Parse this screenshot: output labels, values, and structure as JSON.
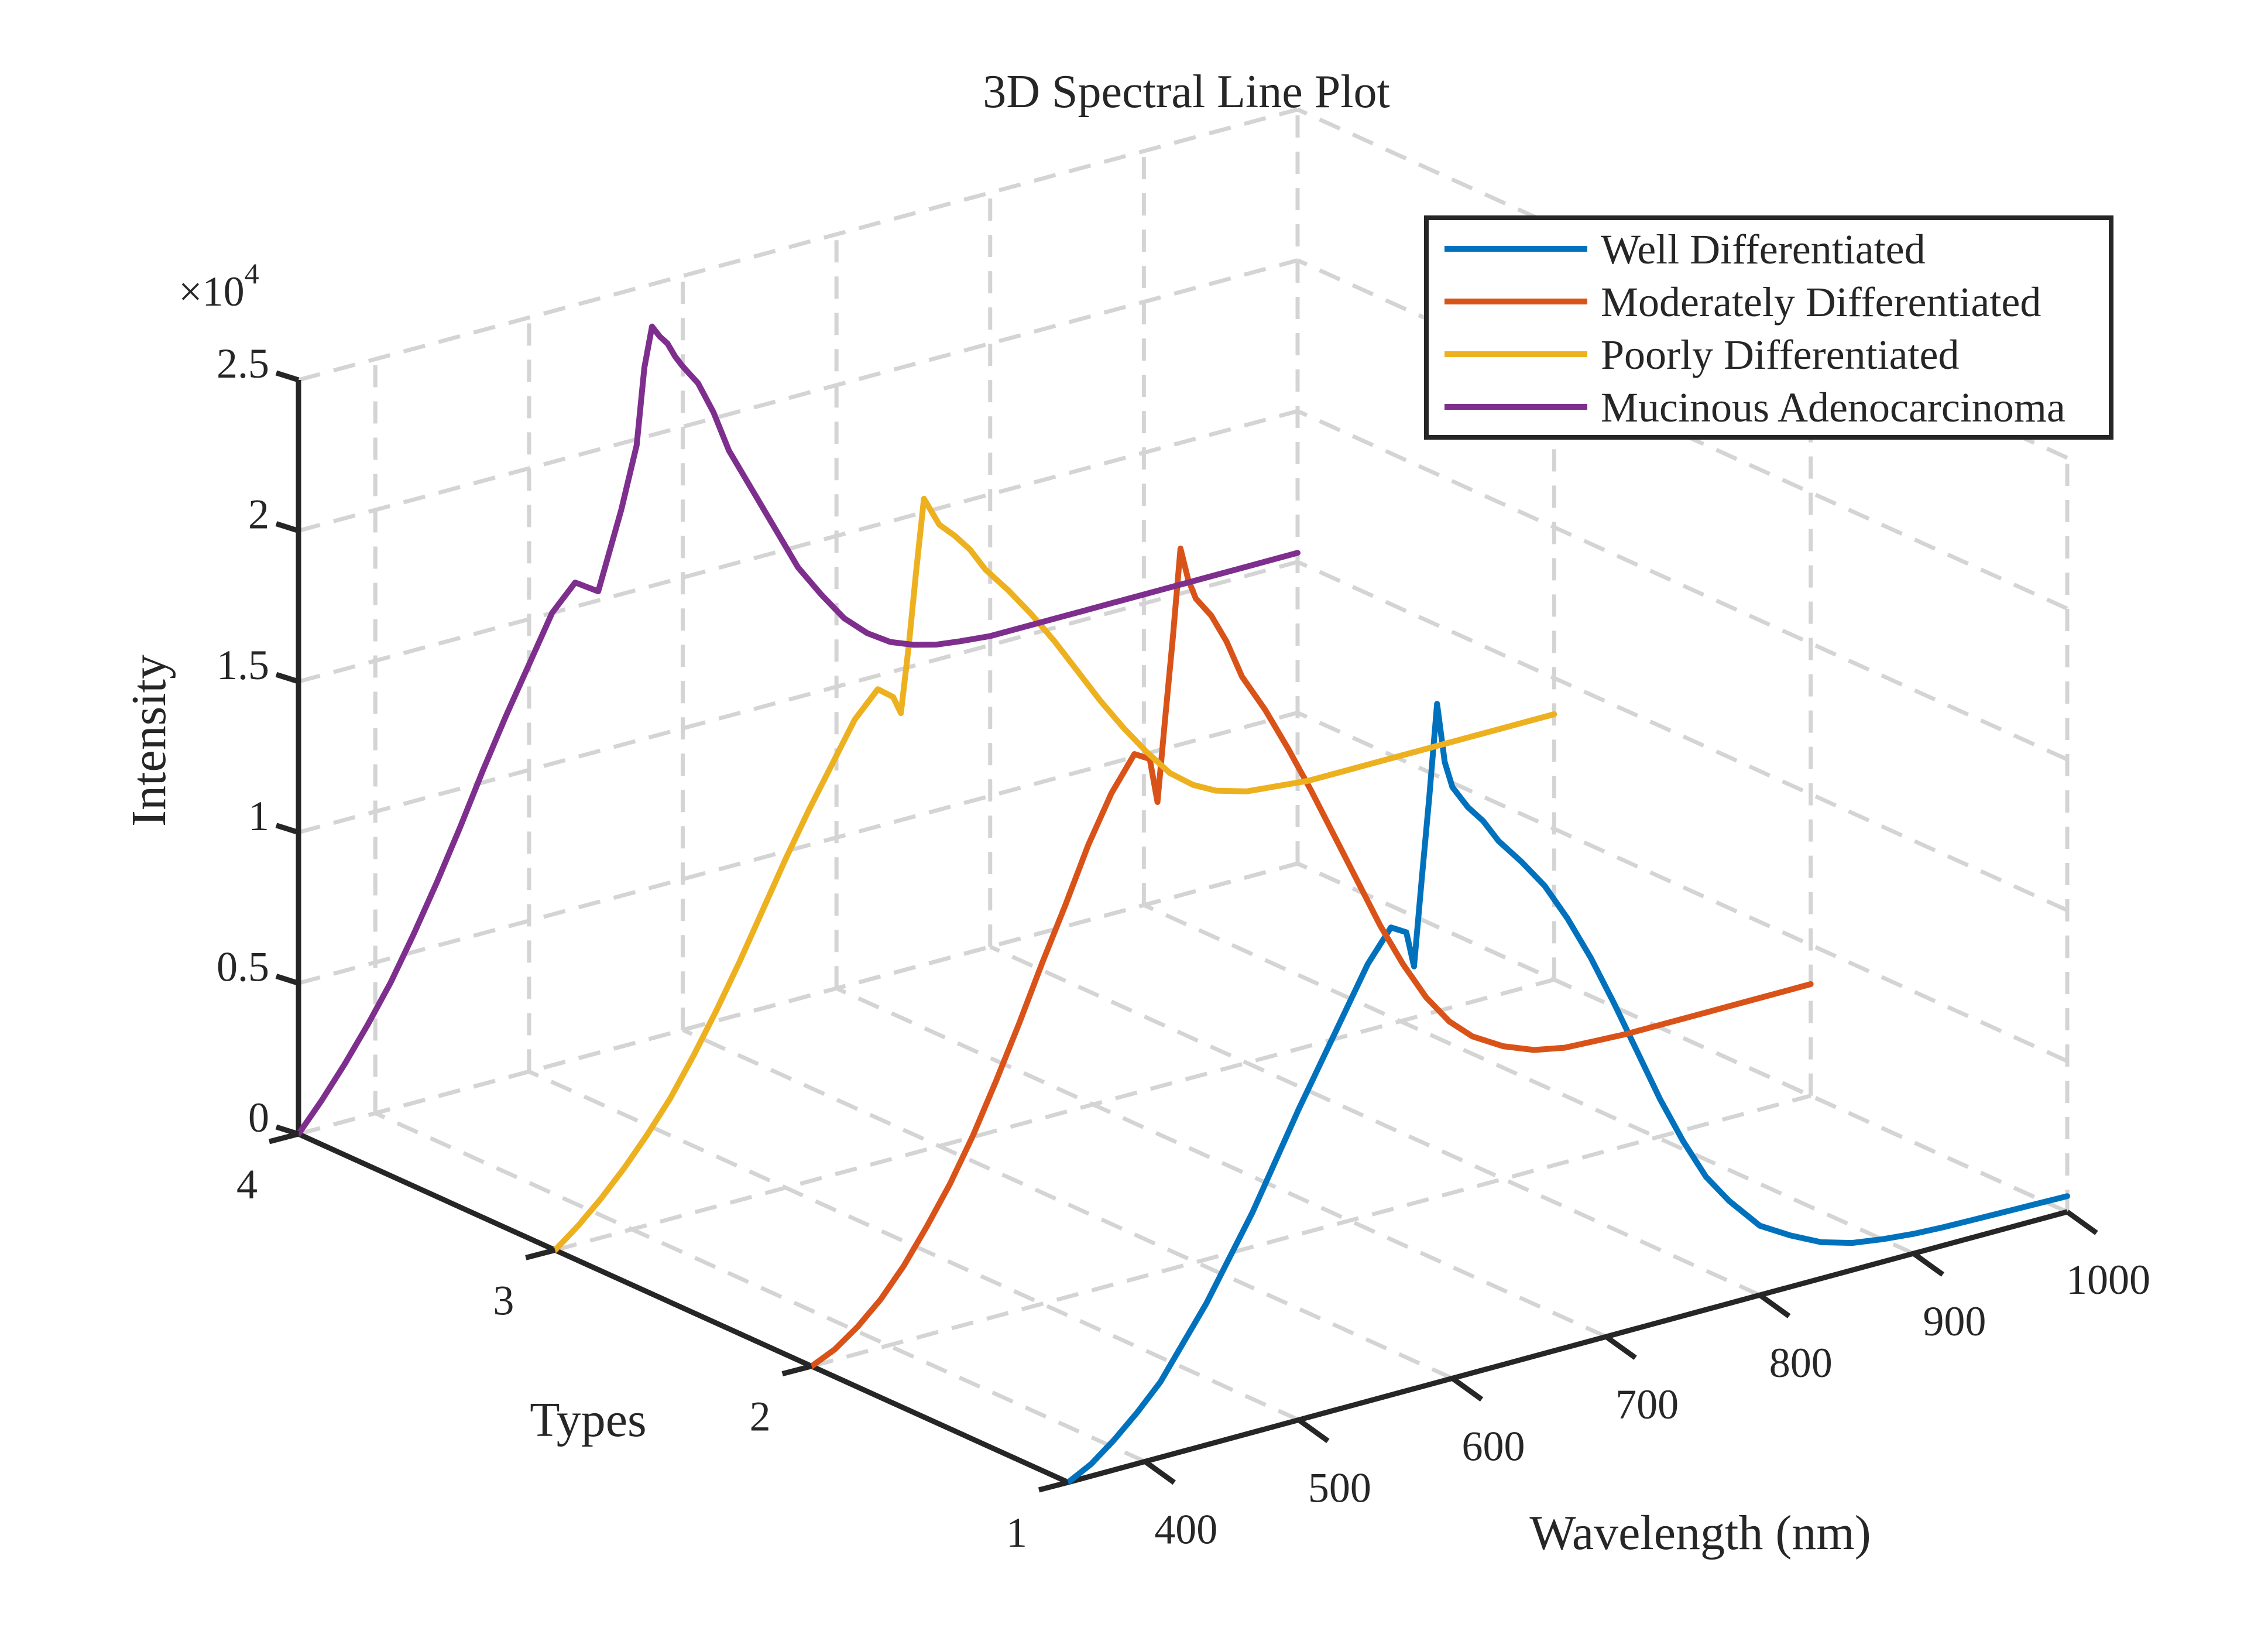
{
  "chart_data": {
    "type": "line",
    "title": "3D Spectral Line Plot",
    "xlabel": "Wavelength (nm)",
    "ylabel": "Types",
    "zlabel": "Intensity",
    "z_exponent_base": "×10",
    "z_exponent_power": "4",
    "xlim": [
      350,
      1000
    ],
    "ylim": [
      1,
      4
    ],
    "zlim": [
      0,
      25000
    ],
    "x_ticks": [
      400,
      500,
      600,
      700,
      800,
      900,
      1000
    ],
    "x_tick_labels": [
      "400",
      "500",
      "600",
      "700",
      "800",
      "900",
      "1000"
    ],
    "y_ticks": [
      1,
      2,
      3,
      4
    ],
    "y_tick_labels": [
      "1",
      "2",
      "3",
      "4"
    ],
    "z_ticks": [
      0,
      5000,
      10000,
      15000,
      20000,
      25000
    ],
    "z_tick_labels": [
      "0",
      "0.5",
      "1",
      "1.5",
      "2",
      "2.5"
    ],
    "grid": true,
    "legend_position": "top-right",
    "x": [
      350,
      365,
      380,
      395,
      410,
      425,
      440,
      455,
      470,
      485,
      500,
      515,
      530,
      545,
      560,
      570,
      575,
      580,
      585,
      590,
      595,
      600,
      610,
      620,
      630,
      645,
      660,
      675,
      690,
      705,
      720,
      735,
      750,
      765,
      780,
      800,
      820,
      840,
      860,
      880,
      900,
      920,
      940,
      960,
      980,
      1000
    ],
    "series": [
      {
        "name": "Well Differentiated",
        "color": "#0072BD",
        "y": 1,
        "values": [
          0,
          400,
          1000,
          1700,
          2500,
          3600,
          4700,
          6000,
          7300,
          8800,
          10300,
          11700,
          13100,
          14500,
          15500,
          15200,
          14000,
          16800,
          19500,
          22500,
          20500,
          19600,
          18800,
          18200,
          17400,
          16500,
          15500,
          14200,
          12700,
          11000,
          9200,
          7400,
          5800,
          4400,
          3400,
          2300,
          1700,
          1200,
          900,
          750,
          650,
          600,
          580,
          560,
          540,
          520
        ]
      },
      {
        "name": "Moderately Differentiated",
        "color": "#D95319",
        "y": 2,
        "values": [
          0,
          350,
          900,
          1600,
          2500,
          3600,
          4800,
          6200,
          7800,
          9500,
          11300,
          13000,
          14800,
          16300,
          17400,
          17100,
          15600,
          18300,
          20900,
          23800,
          22700,
          22000,
          21300,
          20300,
          19000,
          17700,
          16200,
          14600,
          12900,
          11200,
          9500,
          8000,
          6700,
          5700,
          5000,
          4400,
          4000,
          3800,
          3750,
          3700,
          3700,
          3700,
          3700,
          3700,
          3700,
          3700
        ]
      },
      {
        "name": "Poorly Differentiated",
        "color": "#EDB120",
        "y": 3,
        "values": [
          0,
          600,
          1300,
          2100,
          3000,
          4000,
          5200,
          6500,
          7900,
          9400,
          10900,
          12300,
          13600,
          14900,
          15700,
          15300,
          14700,
          16800,
          19300,
          21600,
          21100,
          20600,
          20100,
          19500,
          18700,
          17800,
          16800,
          15700,
          14500,
          13300,
          12200,
          11200,
          10300,
          9700,
          9300,
          9000,
          8900,
          8800,
          8800,
          8800,
          8800,
          8800,
          8800,
          8800,
          8800,
          8800
        ]
      },
      {
        "name": "Mucinous Adenocarcinoma",
        "color": "#7E2F8E",
        "y": 4,
        "values": [
          0,
          900,
          1900,
          3000,
          4200,
          5600,
          7100,
          8700,
          10400,
          12000,
          13500,
          15000,
          15800,
          15300,
          17800,
          19800,
          22300,
          23600,
          23200,
          22900,
          22400,
          22000,
          21300,
          20200,
          18800,
          17300,
          15800,
          14300,
          13200,
          12200,
          11500,
          11000,
          10700,
          10500,
          10400,
          10300,
          10300,
          10300,
          10300,
          10300,
          10300,
          10300,
          10300,
          10300,
          10300,
          10300
        ]
      }
    ]
  }
}
